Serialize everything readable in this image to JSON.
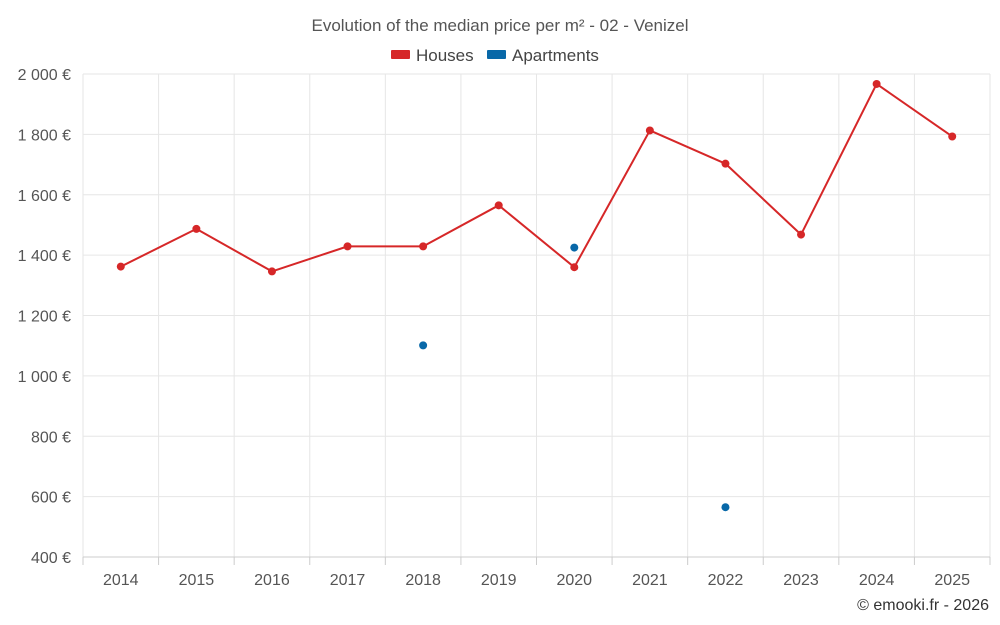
{
  "chart_data": {
    "type": "line",
    "title": "Evolution of the median price per m² - 02 - Venizel",
    "categories": [
      "2014",
      "2015",
      "2016",
      "2017",
      "2018",
      "2019",
      "2020",
      "2021",
      "2022",
      "2023",
      "2024",
      "2025"
    ],
    "ylim": [
      400,
      2000
    ],
    "y_ticks": [
      400,
      600,
      800,
      1000,
      1200,
      1400,
      1600,
      1800,
      2000
    ],
    "y_tick_labels": [
      "400 €",
      "600 €",
      "800 €",
      "1 000 €",
      "1 200 €",
      "1 400 €",
      "1 600 €",
      "1 800 €",
      "2 000 €"
    ],
    "grid": true,
    "legend_position": "top-center",
    "series": [
      {
        "name": "Houses",
        "color": "#d62728",
        "connected": true,
        "values": [
          1362,
          1487,
          1346,
          1429,
          1429,
          1565,
          1360,
          1813,
          1703,
          1468,
          1967,
          1793
        ]
      },
      {
        "name": "Apartments",
        "color": "#0868a8",
        "connected": false,
        "values": [
          null,
          null,
          null,
          null,
          1101,
          null,
          1425,
          null,
          565,
          null,
          null,
          null
        ]
      }
    ],
    "credit": "© emooki.fr - 2026"
  }
}
